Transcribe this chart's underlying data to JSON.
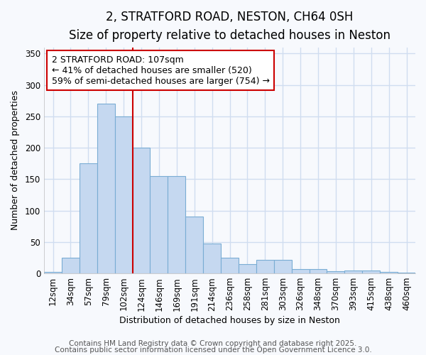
{
  "title": "2, STRATFORD ROAD, NESTON, CH64 0SH",
  "subtitle": "Size of property relative to detached houses in Neston",
  "xlabel": "Distribution of detached houses by size in Neston",
  "ylabel": "Number of detached properties",
  "bar_labels": [
    "12sqm",
    "34sqm",
    "57sqm",
    "79sqm",
    "102sqm",
    "124sqm",
    "146sqm",
    "169sqm",
    "191sqm",
    "214sqm",
    "236sqm",
    "258sqm",
    "281sqm",
    "303sqm",
    "326sqm",
    "348sqm",
    "370sqm",
    "393sqm",
    "415sqm",
    "438sqm",
    "460sqm"
  ],
  "bar_values": [
    2,
    25,
    175,
    270,
    250,
    200,
    155,
    155,
    90,
    47,
    25,
    15,
    22,
    22,
    7,
    7,
    3,
    5,
    5,
    2,
    1
  ],
  "bar_color": "#c5d8f0",
  "bar_edgecolor": "#7aadd4",
  "vline_x_index": 4,
  "vline_color": "#cc0000",
  "annotation_text": "2 STRATFORD ROAD: 107sqm\n← 41% of detached houses are smaller (520)\n59% of semi-detached houses are larger (754) →",
  "ylim": [
    0,
    360
  ],
  "yticks": [
    0,
    50,
    100,
    150,
    200,
    250,
    300,
    350
  ],
  "bg_color": "#f7f9fd",
  "grid_color": "#d0ddf0",
  "footer1": "Contains HM Land Registry data © Crown copyright and database right 2025.",
  "footer2": "Contains public sector information licensed under the Open Government Licence 3.0.",
  "title_fontsize": 12,
  "subtitle_fontsize": 10,
  "xlabel_fontsize": 9,
  "ylabel_fontsize": 9,
  "tick_fontsize": 8.5,
  "annot_fontsize": 9,
  "footer_fontsize": 7.5
}
